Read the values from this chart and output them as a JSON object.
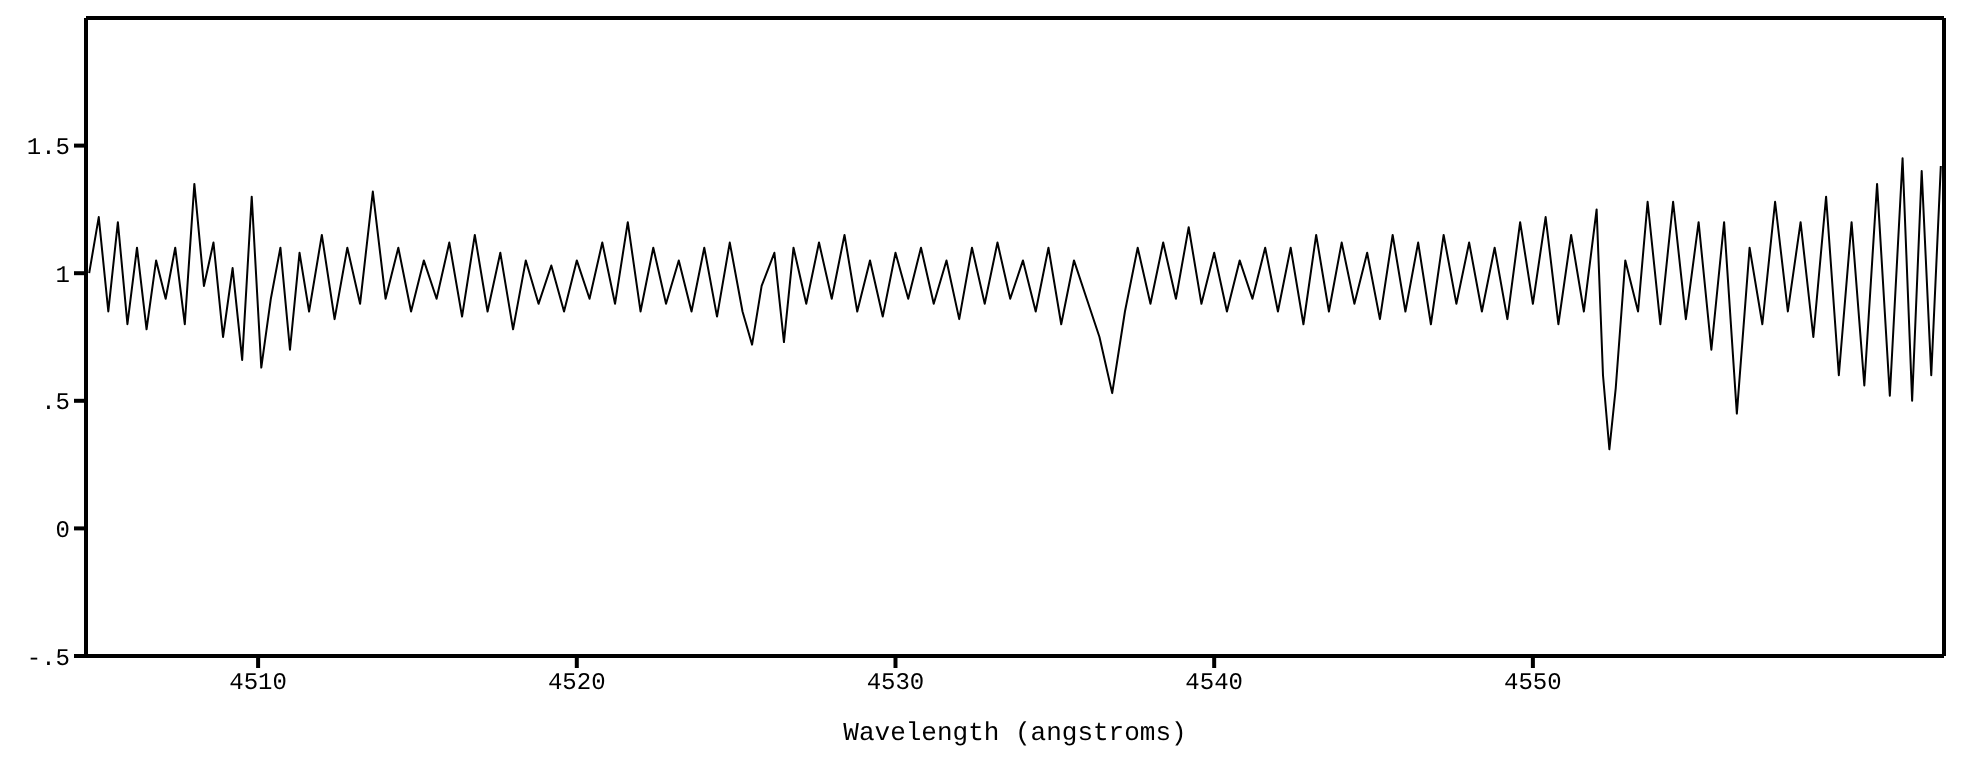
{
  "chart_data": {
    "type": "line",
    "xlabel": "Wavelength (angstroms)",
    "xlim": [
      4504.6,
      4562.9
    ],
    "xticks": [
      4510,
      4520,
      4530,
      4540,
      4550
    ],
    "ylim": [
      -0.5,
      2
    ],
    "yticks": [
      {
        "value": -0.5,
        "label": "-.5"
      },
      0,
      {
        "value": 0.5,
        "label": ".5"
      },
      1,
      1.5
    ],
    "grid": false,
    "legend": false,
    "marker": "none",
    "line_style": "solid",
    "series": [
      {
        "color": "#000000",
        "x": [
          4504.7,
          4505.0,
          4505.3,
          4505.6,
          4505.9,
          4506.2,
          4506.5,
          4506.8,
          4507.1,
          4507.4,
          4507.7,
          4508.0,
          4508.3,
          4508.6,
          4508.9,
          4509.2,
          4509.5,
          4509.8,
          4510.1,
          4510.4,
          4510.7,
          4511.0,
          4511.3,
          4511.6,
          4512.0,
          4512.4,
          4512.8,
          4513.2,
          4513.6,
          4514.0,
          4514.4,
          4514.8,
          4515.2,
          4515.6,
          4516.0,
          4516.4,
          4516.8,
          4517.2,
          4517.6,
          4518.0,
          4518.4,
          4518.8,
          4519.2,
          4519.6,
          4520.0,
          4520.4,
          4520.8,
          4521.2,
          4521.6,
          4522.0,
          4522.4,
          4522.8,
          4523.2,
          4523.6,
          4524.0,
          4524.4,
          4524.8,
          4525.2,
          4525.5,
          4525.8,
          4526.2,
          4526.5,
          4526.8,
          4527.2,
          4527.6,
          4528.0,
          4528.4,
          4528.8,
          4529.2,
          4529.6,
          4530.0,
          4530.4,
          4530.8,
          4531.2,
          4531.6,
          4532.0,
          4532.4,
          4532.8,
          4533.2,
          4533.6,
          4534.0,
          4534.4,
          4534.8,
          4535.2,
          4535.6,
          4536.0,
          4536.4,
          4536.8,
          4537.2,
          4537.6,
          4538.0,
          4538.4,
          4538.8,
          4539.2,
          4539.6,
          4540.0,
          4540.4,
          4540.8,
          4541.2,
          4541.6,
          4542.0,
          4542.4,
          4542.8,
          4543.2,
          4543.6,
          4544.0,
          4544.4,
          4544.8,
          4545.2,
          4545.6,
          4546.0,
          4546.4,
          4546.8,
          4547.2,
          4547.6,
          4548.0,
          4548.4,
          4548.8,
          4549.2,
          4549.6,
          4550.0,
          4550.4,
          4550.8,
          4551.2,
          4551.6,
          4552.0,
          4552.2,
          4552.4,
          4552.6,
          4552.9,
          4553.3,
          4553.6,
          4554.0,
          4554.4,
          4554.8,
          4555.2,
          4555.6,
          4556.0,
          4556.4,
          4556.8,
          4557.2,
          4557.6,
          4558.0,
          4558.4,
          4558.8,
          4559.2,
          4559.6,
          4560.0,
          4560.4,
          4560.8,
          4561.2,
          4561.6,
          4561.9,
          4562.2,
          4562.5,
          4562.8
        ],
        "values": [
          1.0,
          1.22,
          0.85,
          1.2,
          0.8,
          1.1,
          0.78,
          1.05,
          0.9,
          1.1,
          0.8,
          1.35,
          0.95,
          1.12,
          0.75,
          1.02,
          0.66,
          1.3,
          0.63,
          0.9,
          1.1,
          0.7,
          1.08,
          0.85,
          1.15,
          0.82,
          1.1,
          0.88,
          1.32,
          0.9,
          1.1,
          0.85,
          1.05,
          0.9,
          1.12,
          0.83,
          1.15,
          0.85,
          1.08,
          0.78,
          1.05,
          0.88,
          1.03,
          0.85,
          1.05,
          0.9,
          1.12,
          0.88,
          1.2,
          0.85,
          1.1,
          0.88,
          1.05,
          0.85,
          1.1,
          0.83,
          1.12,
          0.85,
          0.72,
          0.95,
          1.08,
          0.73,
          1.1,
          0.88,
          1.12,
          0.9,
          1.15,
          0.85,
          1.05,
          0.83,
          1.08,
          0.9,
          1.1,
          0.88,
          1.05,
          0.82,
          1.1,
          0.88,
          1.12,
          0.9,
          1.05,
          0.85,
          1.1,
          0.8,
          1.05,
          0.9,
          0.75,
          0.53,
          0.85,
          1.1,
          0.88,
          1.12,
          0.9,
          1.18,
          0.88,
          1.08,
          0.85,
          1.05,
          0.9,
          1.1,
          0.85,
          1.1,
          0.8,
          1.15,
          0.85,
          1.12,
          0.88,
          1.08,
          0.82,
          1.15,
          0.85,
          1.12,
          0.8,
          1.15,
          0.88,
          1.12,
          0.85,
          1.1,
          0.82,
          1.2,
          0.88,
          1.22,
          0.8,
          1.15,
          0.85,
          1.25,
          0.6,
          0.31,
          0.55,
          1.05,
          0.85,
          1.28,
          0.8,
          1.28,
          0.82,
          1.2,
          0.7,
          1.2,
          0.45,
          1.1,
          0.8,
          1.28,
          0.85,
          1.2,
          0.75,
          1.3,
          0.6,
          1.2,
          0.56,
          1.35,
          0.52,
          1.45,
          0.5,
          1.4,
          0.6,
          1.42
        ]
      }
    ]
  }
}
